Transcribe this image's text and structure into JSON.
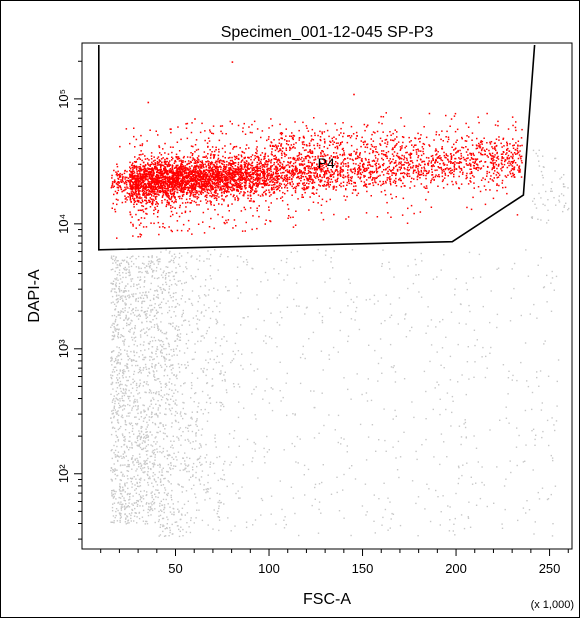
{
  "chart_data": {
    "type": "scatter",
    "title": "Specimen_001-12-045 SP-P3",
    "xlabel": "FSC-A",
    "ylabel": "DAPI-A",
    "x_scale_note": "(x 1,000)",
    "x_scale": "linear",
    "y_scale": "log",
    "xlim": [
      0,
      262
    ],
    "ylim": [
      25,
      280000
    ],
    "x_ticks": [
      50,
      100,
      150,
      200,
      250
    ],
    "y_ticks": [
      {
        "value": 100,
        "label": "10²"
      },
      {
        "value": 1000,
        "label": "10³"
      },
      {
        "value": 10000,
        "label": "10⁴"
      },
      {
        "value": 100000,
        "label": "10⁵"
      }
    ],
    "grid": false,
    "gate": {
      "name": "P4",
      "color": "#000000",
      "label_position": [
        126,
        28000
      ],
      "vertices": [
        [
          9,
          270000
        ],
        [
          9,
          6200
        ],
        [
          198,
          7200
        ],
        [
          236,
          17000
        ],
        [
          242,
          270000
        ]
      ]
    },
    "series": [
      {
        "name": "P4",
        "color": "#ff0000",
        "point_count": 5200,
        "description_ranges": {
          "x_range": [
            15,
            240
          ],
          "y_range": [
            6500,
            200000
          ],
          "y_center": 25000
        }
      },
      {
        "name": "",
        "color": "#c8c8c8",
        "point_count": 2600,
        "description_ranges": {
          "x_range": [
            15,
            260
          ],
          "y_range": [
            28,
            6000
          ]
        }
      }
    ]
  }
}
